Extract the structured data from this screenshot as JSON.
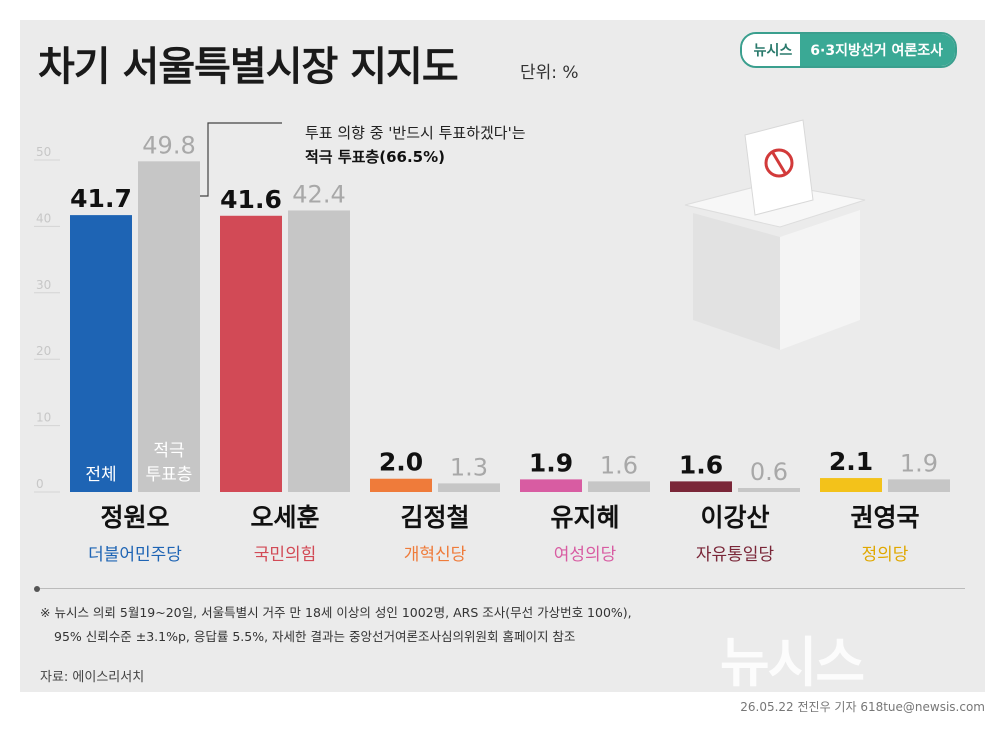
{
  "title": "차기 서울특별시장 지지도",
  "unit": "단위: %",
  "badge": {
    "left": "뉴시스",
    "right": "6·3지방선거 여론조사"
  },
  "annotation": {
    "line1": "투표 의향 중 '반드시 투표하겠다'는",
    "line2": "적극 투표층(66.5%)"
  },
  "bar_labels": {
    "total": "전체",
    "active_line1": "적극",
    "active_line2": "투표층"
  },
  "footnote": {
    "line1": "※ 뉴시스 의뢰 5월19~20일, 서울특별시 거주 만 18세 이상의 성인 1002명, ARS 조사(무선 가상번호 100%),",
    "line2": "95% 신뢰수준 ±3.1%p, 응답률 5.5%, 자세한 결과는 중앙선거여론조사심의위원회 홈페이지 참조"
  },
  "source": "자료: 에이스리서치",
  "watermark": "뉴시스",
  "credit": "26.05.22 전진우 기자 618tue@newsis.com",
  "colors": {
    "background": "#ebebeb",
    "active_bar": "#c6c6c6",
    "active_label": "#a8a8a8"
  },
  "chart_data": {
    "type": "bar",
    "title": "차기 서울특별시장 지지도",
    "ylabel": "단위: %",
    "ylim": [
      0,
      50
    ],
    "yticks": [
      0,
      10,
      20,
      30,
      40,
      50
    ],
    "grid": false,
    "categories": [
      "정원오",
      "오세훈",
      "김정철",
      "유지혜",
      "이강산",
      "권영국"
    ],
    "parties": [
      "더불어민주당",
      "국민의힘",
      "개혁신당",
      "여성의당",
      "자유통일당",
      "정의당"
    ],
    "party_colors": [
      "#1e64b4",
      "#d24a56",
      "#ef7b3a",
      "#d85ca2",
      "#7a2638",
      "#f3c21a"
    ],
    "series": [
      {
        "name": "전체",
        "values": [
          41.7,
          41.6,
          2.0,
          1.9,
          1.6,
          2.1
        ]
      },
      {
        "name": "적극 투표층",
        "values": [
          49.8,
          42.4,
          1.3,
          1.6,
          0.6,
          1.9
        ]
      }
    ]
  }
}
